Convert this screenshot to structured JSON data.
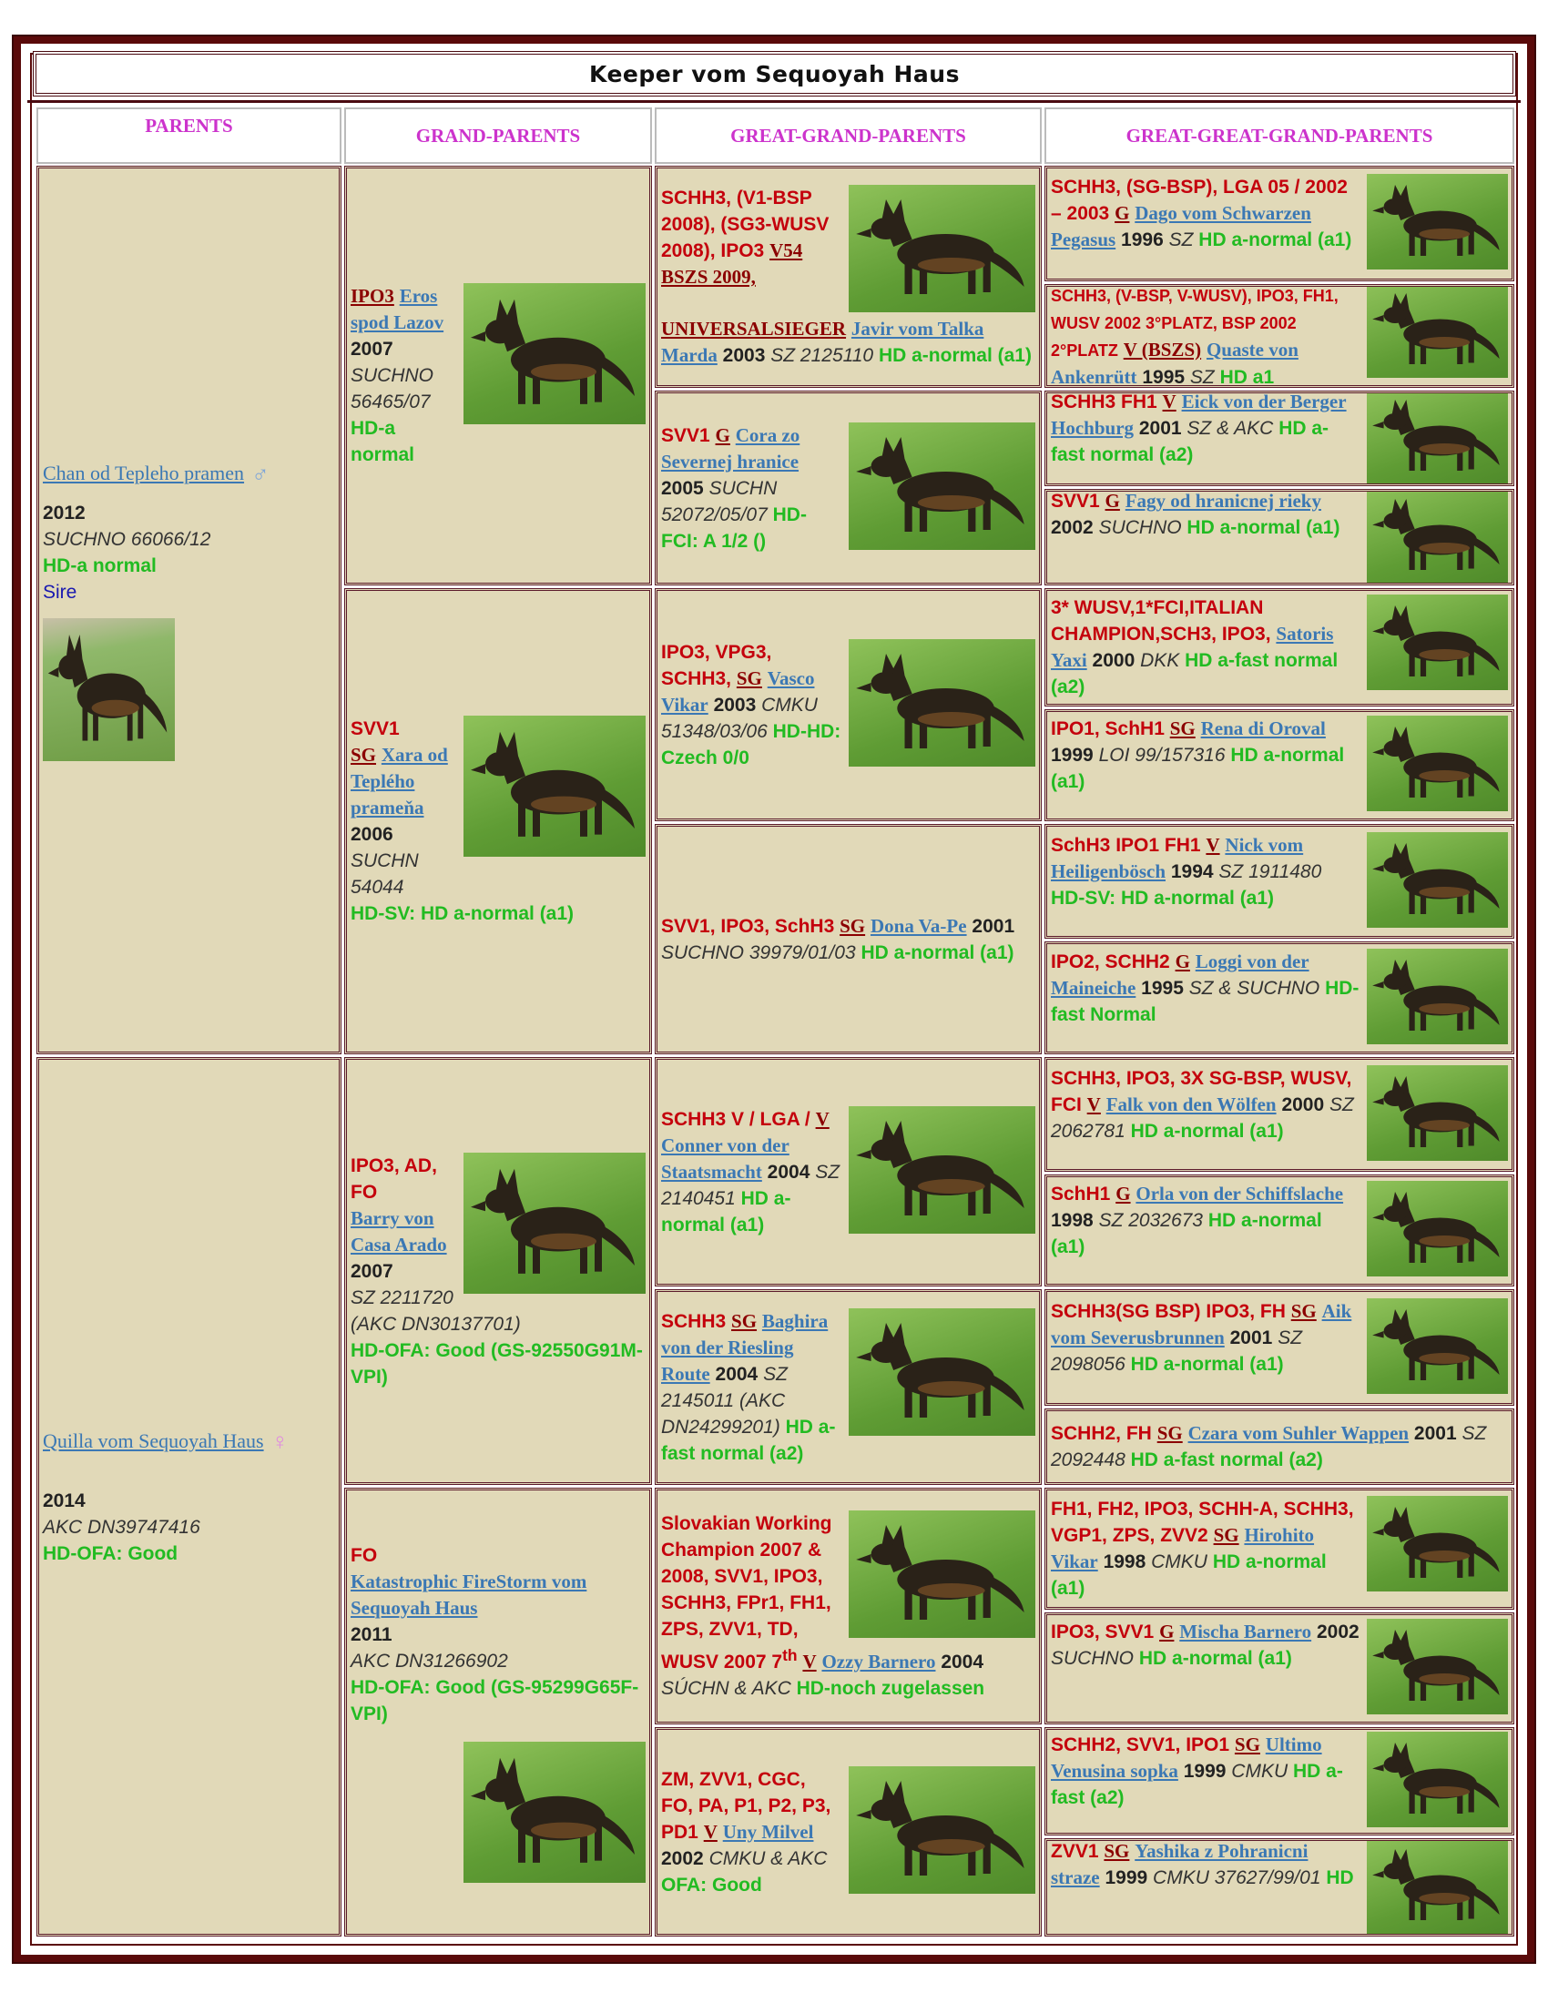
{
  "title": "Keeper vom Sequoyah Haus",
  "headers": [
    "PARENTS",
    "GRAND-PARENTS",
    "GREAT-GRAND-PARENTS",
    "GREAT-GREAT-GRAND-PARENTS"
  ],
  "colors": {
    "frame": "#5a0a0a",
    "cell_bg": "#e1d9b8",
    "titles": "#c4000c",
    "rating": "#8b0000",
    "name_link": "#3b78b4",
    "hd": "#22bb22",
    "header": "#cc33cc",
    "role": "#1818b0"
  },
  "parents": [
    {
      "name": "Chan od Tepleho pramen",
      "sex_icon": "male-symbol-icon",
      "sex_glyph": "♂",
      "year": "2012",
      "registry": "SUCHNO 66066/12",
      "hd": "HD-a normal",
      "role": "Sire"
    },
    {
      "name": "Quilla vom Sequoyah Haus",
      "sex_icon": "female-symbol-icon",
      "sex_glyph": "♀",
      "year": "2014",
      "registry": "AKC DN39747416",
      "hd": "HD-OFA: Good"
    }
  ],
  "grandparents": [
    {
      "titles": "",
      "rating": "IPO3",
      "name": "Eros spod Lazov",
      "year": "2007",
      "registry": "SUCHNO 56465/07",
      "hd": "HD-a normal"
    },
    {
      "titles": "SVV1",
      "rating": "SG",
      "name": "Xara od Teplého prameňa",
      "year": "2006",
      "registry": "SUCHN 54044",
      "hd": "HD-SV: HD a-normal (a1)"
    },
    {
      "titles": "IPO3, AD, FO",
      "rating": "",
      "name": "Barry von Casa Arado",
      "year": "2007",
      "registry": "SZ 2211720 (AKC DN30137701)",
      "hd": "HD-OFA: Good (GS-92550G91M-VPI)"
    },
    {
      "titles": "FO",
      "rating": "",
      "name": "Katastrophic FireStorm vom Sequoyah Haus",
      "year": "2011",
      "registry": "AKC DN31266902",
      "hd": "HD-OFA: Good (GS-95299G65F-VPI)"
    }
  ],
  "great_grandparents": [
    {
      "titles": "SCHH3, (V1-BSP 2008), (SG3-WUSV 2008), IPO3",
      "rating": "V54 BSZS 2009, UNIVERSALSIEGER",
      "name": "Javir vom Talka Marda",
      "year": "2003",
      "registry": "SZ 2125110",
      "hd": "HD a-normal (a1)"
    },
    {
      "titles": "SVV1",
      "rating": "G",
      "name": "Cora zo Severnej hranice",
      "year": "2005",
      "registry": "SUCHN 52072/05/07",
      "hd": "HD-FCI: A 1/2 ()"
    },
    {
      "titles": "IPO3, VPG3, SCHH3,",
      "rating": "SG",
      "name": "Vasco Vikar",
      "year": "2003",
      "registry": "CMKU 51348/03/06",
      "hd": "HD-HD: Czech 0/0"
    },
    {
      "titles": "SVV1, IPO3, SchH3",
      "rating": "SG",
      "name": "Dona Va-Pe",
      "year": "2001",
      "registry": "SUCHNO 39979/01/03",
      "hd": "HD a-normal (a1)"
    },
    {
      "titles": "SCHH3 V / LGA /",
      "rating": "V",
      "name": "Conner von der Staatsmacht",
      "year": "2004",
      "registry": "SZ 2140451",
      "hd": "HD a-normal (a1)"
    },
    {
      "titles": "SCHH3",
      "rating": "SG",
      "name": "Baghira von der Riesling Route",
      "year": "2004",
      "registry": "SZ 2145011 (AKC DN24299201)",
      "hd": "HD a-fast normal (a2)"
    },
    {
      "titles": "Slovakian Working Champion 2007 & 2008, SVV1, IPO3, SCHH3, FPr1, FH1, ZPS, ZVV1, TD, WUSV 2007 7",
      "titles_sup": "th",
      "rating": "V",
      "name": "Ozzy Barnero",
      "year": "2004",
      "registry": "SÚCHN & AKC",
      "hd": "HD-noch zugelassen"
    },
    {
      "titles": "ZM, ZVV1, CGC, FO, PA, P1, P2, P3, PD1",
      "rating": "V",
      "name": "Uny Milvel",
      "year": "2002",
      "registry": "CMKU & AKC",
      "hd": "OFA: Good"
    }
  ],
  "great_great_grandparents": [
    {
      "titles": "SCHH3, (SG-BSP), LGA 05 / 2002 – 2003",
      "rating": "G",
      "name": "Dago vom Schwarzen Pegasus",
      "year": "1996",
      "registry": "SZ",
      "hd": "HD a-normal (a1)"
    },
    {
      "titles": "SCHH3, (V-BSP, V-WUSV), IPO3, FH1, WUSV 2002 3°PLATZ, BSP 2002 2°PLATZ",
      "rating": "V (BSZS)",
      "name": "Quaste von Ankenrütt",
      "year": "1995",
      "registry": "SZ",
      "hd": "HD a1"
    },
    {
      "titles": "SCHH3 FH1",
      "rating": "V",
      "name": "Eick von der Berger Hochburg",
      "year": "2001",
      "registry": "SZ & AKC",
      "hd": "HD a-fast normal (a2)"
    },
    {
      "titles": "SVV1",
      "rating": "G",
      "name": "Fagy od hranicnej rieky",
      "year": "2002",
      "registry": "SUCHNO",
      "hd": "HD a-normal (a1)"
    },
    {
      "titles": "3* WUSV,1*FCI,ITALIAN CHAMPION,SCH3, IPO3,",
      "rating": "",
      "name": "Satoris Yaxi",
      "year": "2000",
      "registry": "DKK",
      "hd": "HD a-fast normal (a2)"
    },
    {
      "titles": "IPO1, SchH1",
      "rating": "SG",
      "name": "Rena di Oroval",
      "year": "1999",
      "registry": "LOI 99/157316",
      "hd": "HD a-normal (a1)"
    },
    {
      "titles": "SchH3 IPO1 FH1",
      "rating": "V",
      "name": "Nick vom Heiligenbösch",
      "year": "1994",
      "registry": "SZ 1911480",
      "hd": "HD-SV: HD a-normal (a1)"
    },
    {
      "titles": "IPO2, SCHH2",
      "rating": "G",
      "name": "Loggi von der Maineiche",
      "year": "1995",
      "registry": "SZ & SUCHNO",
      "hd": "HD-fast Normal"
    },
    {
      "titles": "SCHH3, IPO3, 3X SG-BSP, WUSV, FCI",
      "rating": "V",
      "name": "Falk von den Wölfen",
      "year": "2000",
      "registry": "SZ 2062781",
      "hd": "HD a-normal (a1)"
    },
    {
      "titles": "SchH1",
      "rating": "G",
      "name": "Orla von der Schiffslache",
      "year": "1998",
      "registry": "SZ 2032673",
      "hd": "HD a-normal (a1)"
    },
    {
      "titles": "SCHH3(SG BSP) IPO3, FH",
      "rating": "SG",
      "name": "Aik vom Severusbrunnen",
      "year": "2001",
      "registry": "SZ 2098056",
      "hd": "HD a-normal (a1)"
    },
    {
      "titles": "SCHH2, FH",
      "rating": "SG",
      "name": "Czara vom Suhler Wappen",
      "year": "2001",
      "registry": "SZ 2092448",
      "hd": "HD a-fast normal (a2)"
    },
    {
      "titles": "FH1, FH2, IPO3, SCHH-A, SCHH3, VGP1, ZPS, ZVV2",
      "rating": "SG",
      "name": "Hirohito Vikar",
      "year": "1998",
      "registry": "CMKU",
      "hd": "HD a-normal (a1)"
    },
    {
      "titles": "IPO3, SVV1",
      "rating": "G",
      "name": "Mischa Barnero",
      "year": "2002",
      "registry": "SUCHNO",
      "hd": "HD a-normal (a1)"
    },
    {
      "titles": "SCHH2, SVV1, IPO1",
      "rating": "SG",
      "name": "Ultimo Venusina sopka",
      "year": "1999",
      "registry": "CMKU",
      "hd": "HD a-fast (a2)"
    },
    {
      "titles": "ZVV1",
      "rating": "SG",
      "name": "Yashika z Pohranicni straze",
      "year": "1999",
      "registry": "CMKU 37627/99/01",
      "hd": "HD"
    }
  ]
}
